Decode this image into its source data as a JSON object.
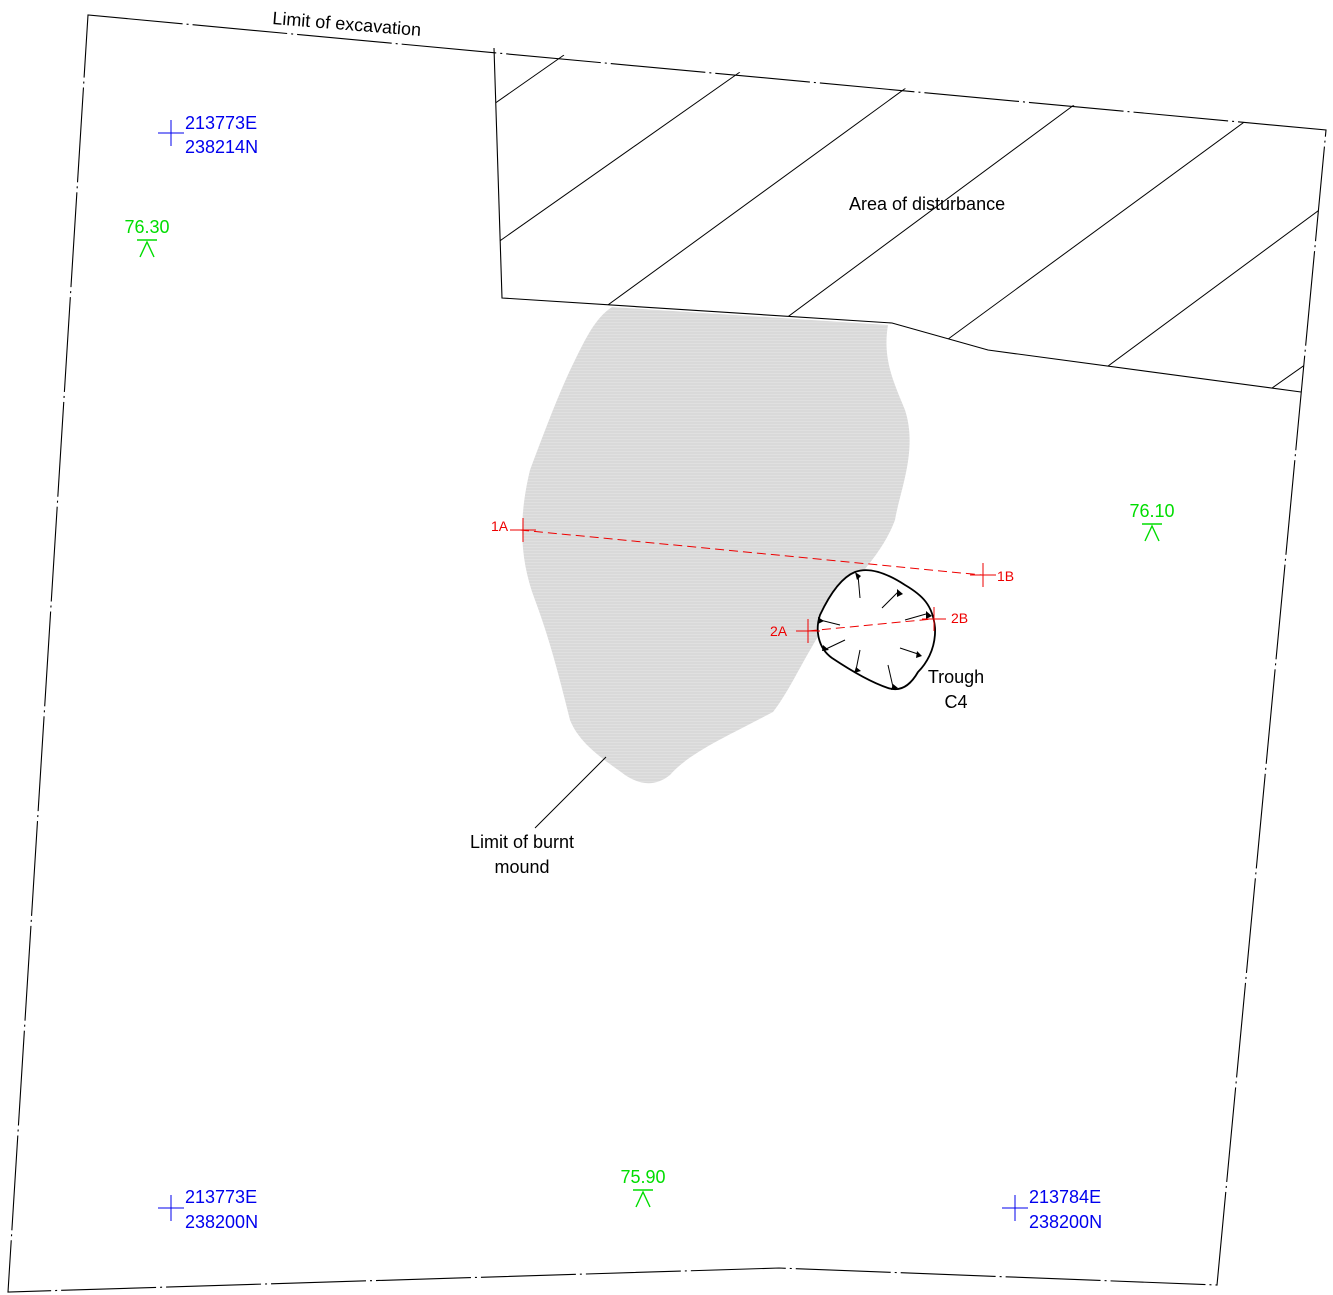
{
  "labels": {
    "limit_excavation": "Limit of excavation",
    "area_disturbance": "Area of disturbance",
    "burnt_mound_line1": "Limit of burnt",
    "burnt_mound_line2": "mound",
    "trough_line1": "Trough",
    "trough_line2": "C4"
  },
  "grid_points": [
    {
      "e": "213773E",
      "n": "238214N"
    },
    {
      "e": "213773E",
      "n": "238200N"
    },
    {
      "e": "213784E",
      "n": "238200N"
    }
  ],
  "levels": [
    "76.30",
    "76.10",
    "75.90"
  ],
  "sections": {
    "s1a": "1A",
    "s1b": "1B",
    "s2a": "2A",
    "s2b": "2B"
  },
  "colors": {
    "grid": "#0000ee",
    "level": "#00dd00",
    "section": "#ee0000",
    "line": "#000000",
    "mound_fill": "#d9d9d9"
  }
}
